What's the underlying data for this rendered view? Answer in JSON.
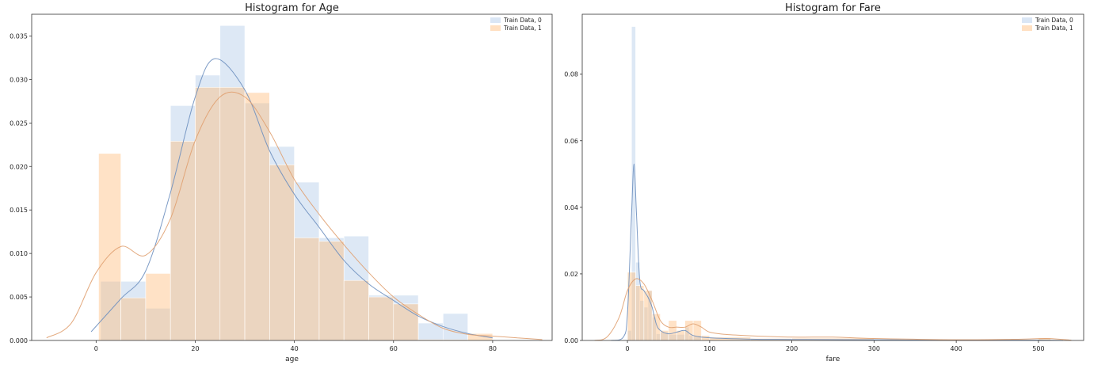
{
  "chart_data": [
    {
      "type": "bar",
      "title": "Histogram for Age",
      "xlabel": "age",
      "ylabel": "",
      "xlim": [
        -13,
        92
      ],
      "ylim": [
        0,
        0.0375
      ],
      "xticks": [
        0,
        20,
        40,
        60,
        80
      ],
      "yticks": [
        0.0,
        0.005,
        0.01,
        0.015,
        0.02,
        0.025,
        0.03,
        0.035
      ],
      "ytick_labels": [
        "0.000",
        "0.005",
        "0.010",
        "0.015",
        "0.020",
        "0.025",
        "0.030",
        "0.035"
      ],
      "grid": false,
      "legend": "top-right",
      "series": [
        {
          "name": "Train Data, 0",
          "color": "#aec7e8",
          "bins": [
            {
              "x0": 0.9,
              "x1": 5.0,
              "value": 0.0068
            },
            {
              "x0": 5.0,
              "x1": 10.0,
              "value": 0.0068
            },
            {
              "x0": 10.0,
              "x1": 15.0,
              "value": 0.0037
            },
            {
              "x0": 15.0,
              "x1": 20.0,
              "value": 0.027
            },
            {
              "x0": 20.0,
              "x1": 25.0,
              "value": 0.0305
            },
            {
              "x0": 25.0,
              "x1": 30.0,
              "value": 0.0362
            },
            {
              "x0": 30.0,
              "x1": 35.0,
              "value": 0.0273
            },
            {
              "x0": 35.0,
              "x1": 40.0,
              "value": 0.0223
            },
            {
              "x0": 40.0,
              "x1": 45.0,
              "value": 0.0182
            },
            {
              "x0": 45.0,
              "x1": 50.0,
              "value": 0.0118
            },
            {
              "x0": 50.0,
              "x1": 55.0,
              "value": 0.012
            },
            {
              "x0": 55.0,
              "x1": 60.0,
              "value": 0.0052
            },
            {
              "x0": 60.0,
              "x1": 65.0,
              "value": 0.0052
            },
            {
              "x0": 65.0,
              "x1": 70.0,
              "value": 0.002
            },
            {
              "x0": 70.0,
              "x1": 75.0,
              "value": 0.0031
            }
          ],
          "kde_x": [
            -1,
            5,
            10,
            15,
            20,
            24,
            30,
            35,
            40,
            45,
            50,
            55,
            60,
            65,
            70,
            75,
            80
          ],
          "kde_y": [
            0.001,
            0.0048,
            0.008,
            0.017,
            0.028,
            0.0324,
            0.0288,
            0.0218,
            0.0168,
            0.013,
            0.0092,
            0.0065,
            0.0046,
            0.0028,
            0.0016,
            0.0008,
            0.0003
          ]
        },
        {
          "name": "Train Data, 1",
          "color": "#ffbb78",
          "bins": [
            {
              "x0": 0.5,
              "x1": 5.0,
              "value": 0.0215
            },
            {
              "x0": 5.0,
              "x1": 10.0,
              "value": 0.0049
            },
            {
              "x0": 10.0,
              "x1": 15.0,
              "value": 0.0077
            },
            {
              "x0": 15.0,
              "x1": 20.0,
              "value": 0.0229
            },
            {
              "x0": 20.0,
              "x1": 25.0,
              "value": 0.0291
            },
            {
              "x0": 25.0,
              "x1": 30.0,
              "value": 0.0291
            },
            {
              "x0": 30.0,
              "x1": 35.0,
              "value": 0.0285
            },
            {
              "x0": 35.0,
              "x1": 40.0,
              "value": 0.0202
            },
            {
              "x0": 40.0,
              "x1": 45.0,
              "value": 0.0118
            },
            {
              "x0": 45.0,
              "x1": 50.0,
              "value": 0.0114
            },
            {
              "x0": 50.0,
              "x1": 55.0,
              "value": 0.0069
            },
            {
              "x0": 55.0,
              "x1": 60.0,
              "value": 0.005
            },
            {
              "x0": 60.0,
              "x1": 65.0,
              "value": 0.0042
            },
            {
              "x0": 65.0,
              "x1": 70.0,
              "value": 0.0001
            },
            {
              "x0": 70.0,
              "x1": 75.0,
              "value": 0.0001
            },
            {
              "x0": 75.0,
              "x1": 80.0,
              "value": 0.0008
            }
          ],
          "kde_x": [
            -10,
            -5,
            0,
            5,
            10,
            15,
            20,
            25,
            30,
            35,
            40,
            45,
            50,
            55,
            60,
            65,
            70,
            75,
            80,
            85,
            90
          ],
          "kde_y": [
            0.0003,
            0.002,
            0.0078,
            0.0108,
            0.0098,
            0.014,
            0.023,
            0.028,
            0.028,
            0.024,
            0.0185,
            0.0145,
            0.011,
            0.0078,
            0.005,
            0.003,
            0.0014,
            0.0007,
            0.0005,
            0.0003,
            0.0001
          ]
        }
      ]
    },
    {
      "type": "bar",
      "title": "Histogram for Fare",
      "xlabel": "fare",
      "ylabel": "",
      "xlim": [
        -55,
        555
      ],
      "ylim": [
        0,
        0.098
      ],
      "xticks": [
        0,
        100,
        200,
        300,
        400,
        500
      ],
      "yticks": [
        0.0,
        0.02,
        0.04,
        0.06,
        0.08
      ],
      "ytick_labels": [
        "0.00",
        "0.02",
        "0.04",
        "0.06",
        "0.08"
      ],
      "grid": false,
      "legend": "top-right",
      "series": [
        {
          "name": "Train Data, 0",
          "color": "#aec7e8",
          "bins": [
            {
              "x0": 0,
              "x1": 5,
              "value": 0.003
            },
            {
              "x0": 5,
              "x1": 10,
              "value": 0.0943
            },
            {
              "x0": 10,
              "x1": 15,
              "value": 0.0235
            },
            {
              "x0": 15,
              "x1": 20,
              "value": 0.012
            },
            {
              "x0": 20,
              "x1": 25,
              "value": 0.01
            },
            {
              "x0": 25,
              "x1": 30,
              "value": 0.015
            },
            {
              "x0": 30,
              "x1": 35,
              "value": 0.007
            },
            {
              "x0": 35,
              "x1": 40,
              "value": 0.002
            },
            {
              "x0": 40,
              "x1": 50,
              "value": 0.0025
            },
            {
              "x0": 50,
              "x1": 70,
              "value": 0.0018
            },
            {
              "x0": 70,
              "x1": 75,
              "value": 0.004
            },
            {
              "x0": 75,
              "x1": 90,
              "value": 0.0015
            }
          ],
          "kde_x": [
            -20,
            -5,
            0,
            5,
            8,
            11,
            15,
            20,
            25,
            30,
            35,
            40,
            50,
            60,
            70,
            80,
            100,
            150,
            200,
            300,
            400,
            500,
            530
          ],
          "kde_y": [
            0.0,
            0.001,
            0.008,
            0.038,
            0.053,
            0.038,
            0.018,
            0.015,
            0.013,
            0.01,
            0.005,
            0.003,
            0.002,
            0.0025,
            0.003,
            0.0015,
            0.0008,
            0.0004,
            0.0003,
            0.0002,
            0.0001,
            0.0001,
            0.0
          ]
        },
        {
          "name": "Train Data, 1",
          "color": "#ffbb78",
          "bins": [
            {
              "x0": 0,
              "x1": 10,
              "value": 0.0205
            },
            {
              "x0": 10,
              "x1": 20,
              "value": 0.0165
            },
            {
              "x0": 20,
              "x1": 30,
              "value": 0.015
            },
            {
              "x0": 30,
              "x1": 40,
              "value": 0.008
            },
            {
              "x0": 40,
              "x1": 50,
              "value": 0.003
            },
            {
              "x0": 50,
              "x1": 60,
              "value": 0.006
            },
            {
              "x0": 60,
              "x1": 70,
              "value": 0.003
            },
            {
              "x0": 70,
              "x1": 80,
              "value": 0.006
            },
            {
              "x0": 80,
              "x1": 90,
              "value": 0.006
            },
            {
              "x0": 90,
              "x1": 100,
              "value": 0.0015
            },
            {
              "x0": 100,
              "x1": 150,
              "value": 0.001
            },
            {
              "x0": 150,
              "x1": 200,
              "value": 0.0006
            },
            {
              "x0": 200,
              "x1": 300,
              "value": 0.0007
            },
            {
              "x0": 500,
              "x1": 515,
              "value": 0.0008
            }
          ],
          "kde_x": [
            -40,
            -25,
            -10,
            0,
            10,
            20,
            30,
            40,
            50,
            60,
            70,
            80,
            90,
            100,
            120,
            150,
            200,
            250,
            300,
            400,
            480,
            510,
            540
          ],
          "kde_y": [
            0.0,
            0.001,
            0.007,
            0.015,
            0.0185,
            0.017,
            0.012,
            0.006,
            0.004,
            0.004,
            0.004,
            0.005,
            0.004,
            0.0025,
            0.0018,
            0.0014,
            0.001,
            0.001,
            0.0006,
            0.0002,
            0.0004,
            0.0006,
            0.0001
          ]
        }
      ]
    }
  ]
}
